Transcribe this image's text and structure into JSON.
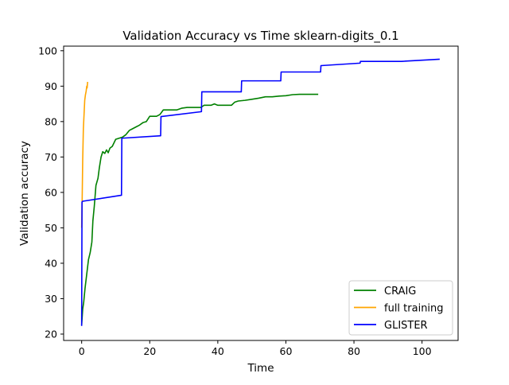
{
  "chart_data": {
    "type": "line",
    "title": "Validation Accuracy vs Time sklearn-digits_0.1",
    "xlabel": "Time",
    "ylabel": "Validation accuracy",
    "xlim": [
      -5.3,
      110.6
    ],
    "ylim": [
      18.2,
      101.3
    ],
    "xticks": [
      0,
      20,
      40,
      60,
      80,
      100
    ],
    "yticks": [
      20,
      30,
      40,
      50,
      60,
      70,
      80,
      90,
      100
    ],
    "grid": false,
    "legend_position": "lower right",
    "series": [
      {
        "name": "CRAIG",
        "color": "#008000",
        "points": [
          [
            0,
            22.5
          ],
          [
            0.3,
            27
          ],
          [
            0.6,
            29
          ],
          [
            1,
            33
          ],
          [
            1.5,
            37
          ],
          [
            2,
            41
          ],
          [
            2.5,
            43
          ],
          [
            3,
            46
          ],
          [
            3.3,
            52
          ],
          [
            3.7,
            56
          ],
          [
            4.2,
            62
          ],
          [
            4.8,
            64
          ],
          [
            5.2,
            67
          ],
          [
            5.7,
            70
          ],
          [
            6.2,
            71.5
          ],
          [
            6.8,
            71
          ],
          [
            7.3,
            72
          ],
          [
            7.8,
            71.2
          ],
          [
            8.3,
            72.5
          ],
          [
            9,
            73
          ],
          [
            10,
            75
          ],
          [
            11,
            75.3
          ],
          [
            12,
            75.6
          ],
          [
            13,
            76.3
          ],
          [
            14,
            77.5
          ],
          [
            15,
            78
          ],
          [
            16,
            78.5
          ],
          [
            17,
            79
          ],
          [
            18,
            79.7
          ],
          [
            19,
            80
          ],
          [
            20,
            81.5
          ],
          [
            22,
            81.5
          ],
          [
            23,
            82
          ],
          [
            24,
            83.3
          ],
          [
            26,
            83.3
          ],
          [
            28,
            83.3
          ],
          [
            29.5,
            83.8
          ],
          [
            31,
            84
          ],
          [
            33,
            84
          ],
          [
            35,
            84
          ],
          [
            36,
            84.6
          ],
          [
            38,
            84.6
          ],
          [
            39,
            85
          ],
          [
            40,
            84.6
          ],
          [
            42,
            84.6
          ],
          [
            44,
            84.6
          ],
          [
            45,
            85.5
          ],
          [
            46,
            85.8
          ],
          [
            48,
            86
          ],
          [
            50,
            86.3
          ],
          [
            52,
            86.6
          ],
          [
            54,
            87
          ],
          [
            56,
            87
          ],
          [
            58,
            87.2
          ],
          [
            60,
            87.3
          ],
          [
            62,
            87.6
          ],
          [
            64,
            87.7
          ],
          [
            66,
            87.7
          ],
          [
            68,
            87.7
          ],
          [
            69.5,
            87.7
          ]
        ]
      },
      {
        "name": "full training",
        "color": "#ffa500",
        "points": [
          [
            0,
            50
          ],
          [
            0.15,
            58
          ],
          [
            0.3,
            69
          ],
          [
            0.5,
            78
          ],
          [
            0.7,
            82
          ],
          [
            0.9,
            86
          ],
          [
            1.1,
            87.5
          ],
          [
            1.3,
            88.5
          ],
          [
            1.5,
            90
          ],
          [
            1.6,
            89.5
          ],
          [
            1.75,
            91.2
          ]
        ]
      },
      {
        "name": "GLISTER",
        "color": "#0000ff",
        "points": [
          [
            0,
            22.3
          ],
          [
            0.1,
            57.3
          ],
          [
            0.3,
            57.5
          ],
          [
            11.7,
            59.2
          ],
          [
            11.8,
            75.3
          ],
          [
            23.2,
            76
          ],
          [
            23.3,
            81.4
          ],
          [
            35.2,
            82.8
          ],
          [
            35.3,
            88.4
          ],
          [
            46.9,
            88.4
          ],
          [
            47,
            91.5
          ],
          [
            58.5,
            91.5
          ],
          [
            58.6,
            94
          ],
          [
            70.2,
            94
          ],
          [
            70.3,
            95.8
          ],
          [
            81.8,
            96.5
          ],
          [
            81.9,
            97
          ],
          [
            94,
            97
          ],
          [
            105.2,
            97.6
          ]
        ]
      }
    ]
  }
}
